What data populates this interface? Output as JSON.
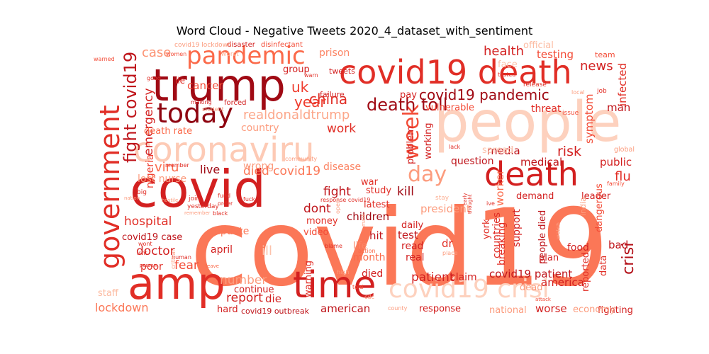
{
  "chart_data": {
    "type": "wordcloud",
    "title": "Word Cloud - Negative Tweets 2020_4_dataset_with_sentiment",
    "colormap": "Reds",
    "words": [
      {
        "text": "covid19",
        "shade": 0.55
      },
      {
        "text": "people",
        "shade": 0.1
      },
      {
        "text": "covid",
        "shade": 0.85
      },
      {
        "text": "trump",
        "shade": 0.95
      },
      {
        "text": "covid19 death",
        "shade": 0.8
      },
      {
        "text": "amp",
        "shade": 0.8
      },
      {
        "text": "coronaviru",
        "shade": 0.15
      },
      {
        "text": "death",
        "shade": 0.85
      },
      {
        "text": "government",
        "shade": 0.8
      },
      {
        "text": "time",
        "shade": 0.85
      },
      {
        "text": "pandemic",
        "shade": 0.6
      },
      {
        "text": "today",
        "shade": 0.98
      },
      {
        "text": "week",
        "shade": 0.7
      },
      {
        "text": "crisi",
        "shade": 0.92
      },
      {
        "text": "day",
        "shade": 0.4
      },
      {
        "text": "covid19 crisi",
        "shade": 0.1
      },
      {
        "text": "fight covid19",
        "shade": 0.9
      },
      {
        "text": "death toll",
        "shade": 0.95
      },
      {
        "text": "covid19 pandemic",
        "shade": 0.95
      },
      {
        "text": "health",
        "shade": 0.85
      },
      {
        "text": "news",
        "shade": 0.85
      },
      {
        "text": "testing",
        "shade": 0.7
      },
      {
        "text": "case",
        "shade": 0.45
      },
      {
        "text": "prison",
        "shade": 0.5
      },
      {
        "text": "uk",
        "shade": 0.75
      },
      {
        "text": "china",
        "shade": 0.8
      },
      {
        "text": "year",
        "shade": 0.75
      },
      {
        "text": "realdonaldtrump",
        "shade": 0.35
      },
      {
        "text": "work",
        "shade": 0.8
      },
      {
        "text": "emergency",
        "shade": 0.85
      },
      {
        "text": "nigeria",
        "shade": 0.75
      },
      {
        "text": "death rate",
        "shade": 0.6
      },
      {
        "text": "country",
        "shade": 0.4
      },
      {
        "text": "cancer",
        "shade": 0.7
      },
      {
        "text": "group",
        "shade": 0.85
      },
      {
        "text": "risk",
        "shade": 0.85
      },
      {
        "text": "flu",
        "shade": 0.8
      },
      {
        "text": "public",
        "shade": 0.85
      },
      {
        "text": "global",
        "shade": 0.4
      },
      {
        "text": "symptom",
        "shade": 0.7
      },
      {
        "text": "man",
        "shade": 0.9
      },
      {
        "text": "infected",
        "shade": 0.8
      },
      {
        "text": "threat",
        "shade": 0.8
      },
      {
        "text": "vulnerable",
        "shade": 0.7
      },
      {
        "text": "viru",
        "shade": 0.6
      },
      {
        "text": "live",
        "shade": 0.95
      },
      {
        "text": "died covid19",
        "shade": 0.55
      },
      {
        "text": "wrong",
        "shade": 0.4
      },
      {
        "text": "disease",
        "shade": 0.5
      },
      {
        "text": "lost nurse",
        "shade": 0.4
      },
      {
        "text": "hospital",
        "shade": 0.8
      },
      {
        "text": "fight",
        "shade": 0.9
      },
      {
        "text": "dont",
        "shade": 0.9
      },
      {
        "text": "kill",
        "shade": 0.95
      },
      {
        "text": "war",
        "shade": 0.8
      },
      {
        "text": "study",
        "shade": 0.8
      },
      {
        "text": "latest",
        "shade": 0.8
      },
      {
        "text": "children",
        "shade": 0.95
      },
      {
        "text": "money",
        "shade": 0.8
      },
      {
        "text": "video",
        "shade": 0.7
      },
      {
        "text": "covid19 case",
        "shade": 0.9
      },
      {
        "text": "update",
        "shade": 0.55
      },
      {
        "text": "doctor",
        "shade": 0.85
      },
      {
        "text": "fear",
        "shade": 0.7
      },
      {
        "text": "april",
        "shade": 0.85
      },
      {
        "text": "poor",
        "shade": 0.8
      },
      {
        "text": "number",
        "shade": 0.4
      },
      {
        "text": "report",
        "shade": 0.85
      },
      {
        "text": "continue",
        "shade": 0.85
      },
      {
        "text": "die",
        "shade": 0.85
      },
      {
        "text": "lockdown",
        "shade": 0.55
      },
      {
        "text": "hard",
        "shade": 0.85
      },
      {
        "text": "covid19 outbreak",
        "shade": 0.9
      },
      {
        "text": "american",
        "shade": 0.9
      },
      {
        "text": "hit",
        "shade": 0.9
      },
      {
        "text": "life",
        "shade": 0.5
      },
      {
        "text": "month",
        "shade": 0.6
      },
      {
        "text": "warning",
        "shade": 0.8
      },
      {
        "text": "died",
        "shade": 0.85
      },
      {
        "text": "patient",
        "shade": 0.85
      },
      {
        "text": "test",
        "shade": 0.9
      },
      {
        "text": "read",
        "shade": 0.85
      },
      {
        "text": "real",
        "shade": 0.85
      },
      {
        "text": "daily",
        "shade": 0.85
      },
      {
        "text": "president",
        "shade": 0.4
      },
      {
        "text": "dr",
        "shade": 0.8
      },
      {
        "text": "claim",
        "shade": 0.85
      },
      {
        "text": "response",
        "shade": 0.85
      },
      {
        "text": "worse",
        "shade": 0.85
      },
      {
        "text": "covid19 patient",
        "shade": 0.9
      },
      {
        "text": "america",
        "shade": 0.85
      },
      {
        "text": "people died",
        "shade": 0.9
      },
      {
        "text": "food",
        "shade": 0.85
      },
      {
        "text": "bad",
        "shade": 0.9
      },
      {
        "text": "plan",
        "shade": 0.85
      },
      {
        "text": "support",
        "shade": 0.85
      },
      {
        "text": "breaking",
        "shade": 0.8
      },
      {
        "text": "york",
        "shade": 0.8
      },
      {
        "text": "countries",
        "shade": 0.8
      },
      {
        "text": "medical",
        "shade": 0.9
      },
      {
        "text": "media",
        "shade": 0.9
      },
      {
        "text": "question",
        "shade": 0.9
      },
      {
        "text": "working",
        "shade": 0.85
      },
      {
        "text": "problem",
        "shade": 0.85
      },
      {
        "text": "pay",
        "shade": 0.85
      },
      {
        "text": "worker",
        "shade": 0.6
      },
      {
        "text": "data",
        "shade": 0.8
      },
      {
        "text": "reported",
        "shade": 0.8
      },
      {
        "text": "dangerous",
        "shade": 0.7
      },
      {
        "text": "leader",
        "shade": 0.85
      },
      {
        "text": "demand",
        "shade": 0.85
      },
      {
        "text": "fighting",
        "shade": 0.85
      },
      {
        "text": "national",
        "shade": 0.4
      },
      {
        "text": "economy",
        "shade": 0.4
      },
      {
        "text": "staff",
        "shade": 0.25
      },
      {
        "text": "dead",
        "shade": 0.4
      },
      {
        "text": "official",
        "shade": 0.25
      },
      {
        "text": "face",
        "shade": 0.2
      },
      {
        "text": "team",
        "shade": 0.7
      },
      {
        "text": "spread",
        "shade": 0.2
      },
      {
        "text": "disinfectant",
        "shade": 0.7
      },
      {
        "text": "disaster",
        "shade": 0.85
      },
      {
        "text": "covid19 lockdown",
        "shade": 0.4
      },
      {
        "text": "warned",
        "shade": 0.7
      },
      {
        "text": "women",
        "shade": 0.7
      },
      {
        "text": "worst",
        "shade": 0.3
      },
      {
        "text": "lie",
        "shade": 0.8
      },
      {
        "text": "good",
        "shade": 0.8
      },
      {
        "text": "making",
        "shade": 0.85
      },
      {
        "text": "forced",
        "shade": 0.85
      },
      {
        "text": "student",
        "shade": 0.4
      },
      {
        "text": "failure",
        "shade": 0.85
      },
      {
        "text": "tweets",
        "shade": 0.85
      },
      {
        "text": "warn",
        "shade": 0.8
      },
      {
        "text": "tested",
        "shade": 0.8
      },
      {
        "text": "release",
        "shade": 0.8
      },
      {
        "text": "issue",
        "shade": 0.7
      },
      {
        "text": "local",
        "shade": 0.4
      },
      {
        "text": "job",
        "shade": 0.8
      },
      {
        "text": "lack",
        "shade": 0.8
      },
      {
        "text": "join",
        "shade": 0.8
      },
      {
        "text": "yesterday",
        "shade": 0.8
      },
      {
        "text": "member",
        "shade": 0.8
      },
      {
        "text": "community",
        "shade": 0.4
      },
      {
        "text": "fuck",
        "shade": 0.8
      },
      {
        "text": "fund",
        "shade": 0.8
      },
      {
        "text": "order",
        "shade": 0.8
      },
      {
        "text": "black",
        "shade": 0.8
      },
      {
        "text": "nation",
        "shade": 0.4
      },
      {
        "text": "big",
        "shade": 0.8
      },
      {
        "text": "hostile",
        "shade": 0.4
      },
      {
        "text": "response covid19",
        "shade": 0.8
      },
      {
        "text": "remember",
        "shade": 0.4
      },
      {
        "text": "blame",
        "shade": 0.8
      },
      {
        "text": "wont",
        "shade": 0.8
      },
      {
        "text": "isnt",
        "shade": 0.8
      },
      {
        "text": "human",
        "shade": 0.8
      },
      {
        "text": "person",
        "shade": 0.8
      },
      {
        "text": "leave",
        "shade": 0.6
      },
      {
        "text": "action",
        "shade": 0.6
      },
      {
        "text": "told",
        "shade": 0.7
      },
      {
        "text": "high",
        "shade": 0.4
      },
      {
        "text": "cdc",
        "shade": 0.4
      },
      {
        "text": "county",
        "shade": 0.4
      },
      {
        "text": "attack",
        "shade": 0.7
      },
      {
        "text": "early",
        "shade": 0.8
      },
      {
        "text": "thought",
        "shade": 0.8
      },
      {
        "text": "ive",
        "shade": 0.8
      },
      {
        "text": "stay",
        "shade": 0.3
      },
      {
        "text": "place",
        "shade": 0.4
      },
      {
        "text": "india",
        "shade": 0.4
      },
      {
        "text": "watch",
        "shade": 0.4
      },
      {
        "text": "family",
        "shade": 0.7
      },
      {
        "text": "open",
        "shade": 0.4
      },
      {
        "text": "mask",
        "shade": 0.4
      },
      {
        "text": "critical",
        "shade": 0.4
      },
      {
        "text": "ill",
        "shade": 0.2
      }
    ]
  }
}
